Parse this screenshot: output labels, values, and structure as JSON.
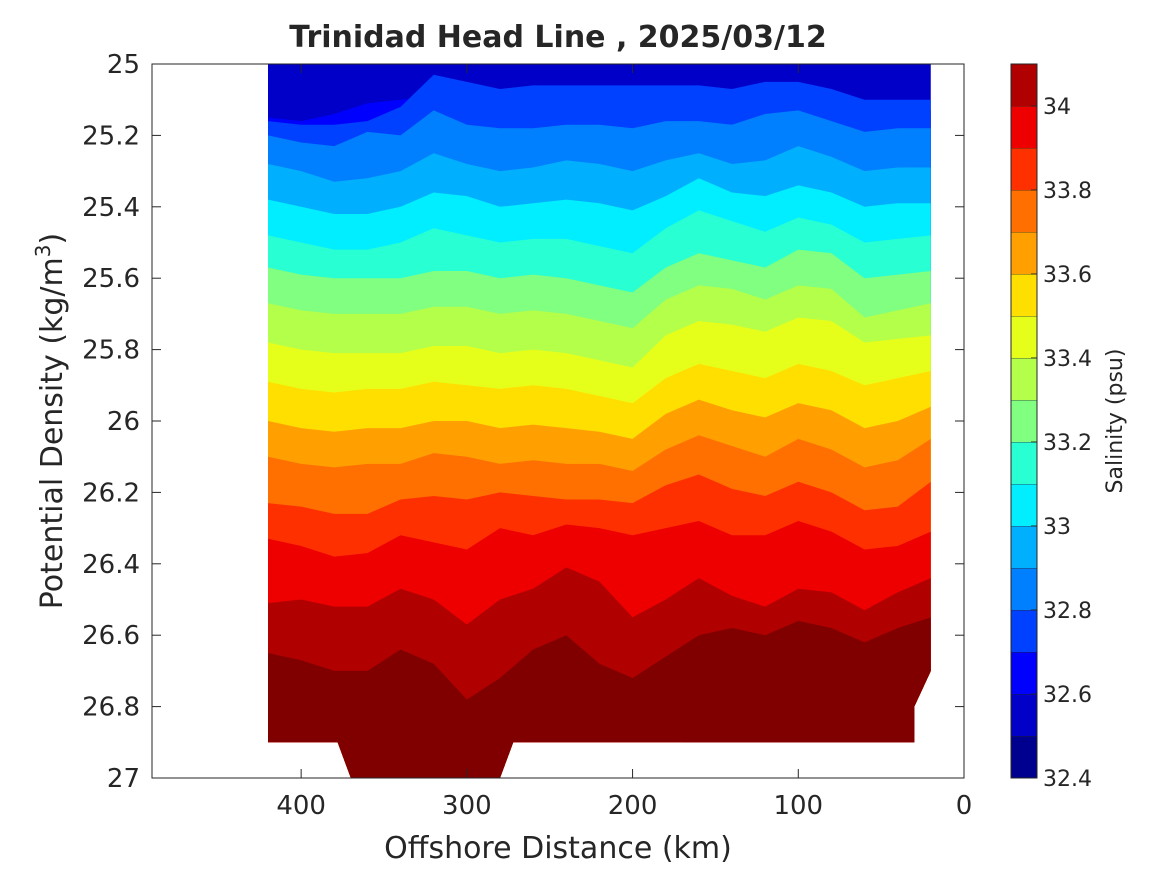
{
  "chart_data": {
    "type": "heatmap",
    "plot_style": "filled-contour",
    "title": "Trinidad Head Line , 2025/03/12",
    "xlabel": "Offshore Distance (km)",
    "ylabel_main": "Potential Density (kg/m",
    "ylabel_sup": "3",
    "ylabel_close": ")",
    "xlim": [
      490,
      0
    ],
    "x_reversed": true,
    "ylim": [
      25,
      27
    ],
    "y_reversed": true,
    "grid": false,
    "xticks": [
      400,
      300,
      200,
      100,
      0
    ],
    "xtick_labels": [
      "400",
      "300",
      "200",
      "100",
      "0"
    ],
    "yticks": [
      25,
      25.2,
      25.4,
      25.6,
      25.8,
      26,
      26.2,
      26.4,
      26.6,
      26.8,
      27
    ],
    "ytick_labels": [
      "25",
      "25.2",
      "25.4",
      "25.6",
      "25.8",
      "26",
      "26.2",
      "26.4",
      "26.6",
      "26.8",
      "27"
    ],
    "colorbar": {
      "label": "Salinity (psu)",
      "range": [
        32.4,
        34.1
      ],
      "tick_values": [
        32.4,
        32.6,
        32.8,
        33,
        33.2,
        33.4,
        33.6,
        33.8,
        34
      ],
      "tick_labels": [
        "32.4",
        "32.6",
        "32.8",
        "33",
        "33.2",
        "33.4",
        "33.6",
        "33.8",
        "34"
      ],
      "levels": [
        {
          "lo": 32.4,
          "hi": 32.5,
          "color": "#00008f"
        },
        {
          "lo": 32.5,
          "hi": 32.6,
          "color": "#0000c8"
        },
        {
          "lo": 32.6,
          "hi": 32.7,
          "color": "#0000ff"
        },
        {
          "lo": 32.7,
          "hi": 32.8,
          "color": "#0040ff"
        },
        {
          "lo": 32.8,
          "hi": 32.9,
          "color": "#0080ff"
        },
        {
          "lo": 32.9,
          "hi": 33.0,
          "color": "#00b0ff"
        },
        {
          "lo": 33.0,
          "hi": 33.1,
          "color": "#00eeff"
        },
        {
          "lo": 33.1,
          "hi": 33.2,
          "color": "#28ffd2"
        },
        {
          "lo": 33.2,
          "hi": 33.3,
          "color": "#80ff80"
        },
        {
          "lo": 33.3,
          "hi": 33.4,
          "color": "#b4ff4a"
        },
        {
          "lo": 33.4,
          "hi": 33.5,
          "color": "#e6ff1a"
        },
        {
          "lo": 33.5,
          "hi": 33.6,
          "color": "#ffdf00"
        },
        {
          "lo": 33.6,
          "hi": 33.7,
          "color": "#ffa000"
        },
        {
          "lo": 33.7,
          "hi": 33.8,
          "color": "#ff7000"
        },
        {
          "lo": 33.8,
          "hi": 33.9,
          "color": "#ff3000"
        },
        {
          "lo": 33.9,
          "hi": 34.0,
          "color": "#ee0000"
        },
        {
          "lo": 34.0,
          "hi": 34.1,
          "color": "#b00000"
        },
        {
          "lo": 34.1,
          "hi": 34.2,
          "color": "#800000"
        }
      ]
    },
    "data_extent": {
      "x_min": 20,
      "x_max": 420,
      "y_bottom": 26.9,
      "x_right_taper": 30,
      "y_taper_top": 26.7,
      "y_taper_bottom": 26.8,
      "notch_x": [
        370,
        280
      ],
      "notch_bottom": 27.0
    },
    "x": [
      420,
      400,
      380,
      360,
      340,
      320,
      300,
      280,
      260,
      240,
      220,
      200,
      180,
      160,
      140,
      120,
      100,
      80,
      60,
      40,
      20
    ],
    "contours": [
      {
        "level": 32.6,
        "y": [
          25.15,
          25.16,
          25.14,
          25.11,
          25.1,
          25.09,
          25.13,
          25.13,
          25.13,
          25.14,
          25.16,
          25.14,
          25.12,
          25.14,
          25.15,
          25.14,
          25.12,
          25.11,
          25.13,
          25.13,
          25.13
        ]
      },
      {
        "level": 32.7,
        "y": [
          25.16,
          25.17,
          25.17,
          25.16,
          25.12,
          25.03,
          25.05,
          25.07,
          25.06,
          25.06,
          25.06,
          25.06,
          25.06,
          25.06,
          25.07,
          25.05,
          25.05,
          25.07,
          25.1,
          25.1,
          25.1
        ]
      },
      {
        "level": 32.8,
        "y": [
          25.2,
          25.22,
          25.23,
          25.19,
          25.2,
          25.13,
          25.17,
          25.18,
          25.18,
          25.17,
          25.17,
          25.18,
          25.16,
          25.16,
          25.17,
          25.14,
          25.13,
          25.16,
          25.19,
          25.18,
          25.18
        ]
      },
      {
        "level": 32.9,
        "y": [
          25.28,
          25.3,
          25.33,
          25.32,
          25.3,
          25.25,
          25.28,
          25.3,
          25.29,
          25.27,
          25.28,
          25.3,
          25.27,
          25.25,
          25.28,
          25.27,
          25.23,
          25.26,
          25.3,
          25.29,
          25.29
        ]
      },
      {
        "level": 33.0,
        "y": [
          25.38,
          25.4,
          25.42,
          25.42,
          25.4,
          25.36,
          25.37,
          25.4,
          25.39,
          25.38,
          25.39,
          25.41,
          25.37,
          25.32,
          25.36,
          25.37,
          25.34,
          25.36,
          25.4,
          25.39,
          25.39
        ]
      },
      {
        "level": 33.1,
        "y": [
          25.48,
          25.5,
          25.52,
          25.52,
          25.5,
          25.46,
          25.48,
          25.5,
          25.49,
          25.49,
          25.51,
          25.53,
          25.46,
          25.41,
          25.44,
          25.47,
          25.43,
          25.45,
          25.5,
          25.49,
          25.48
        ]
      },
      {
        "level": 33.2,
        "y": [
          25.57,
          25.59,
          25.6,
          25.6,
          25.6,
          25.58,
          25.58,
          25.6,
          25.59,
          25.6,
          25.62,
          25.64,
          25.57,
          25.53,
          25.55,
          25.57,
          25.52,
          25.53,
          25.6,
          25.59,
          25.58
        ]
      },
      {
        "level": 33.3,
        "y": [
          25.67,
          25.69,
          25.7,
          25.7,
          25.7,
          25.68,
          25.68,
          25.7,
          25.69,
          25.7,
          25.72,
          25.74,
          25.66,
          25.62,
          25.63,
          25.66,
          25.62,
          25.63,
          25.71,
          25.69,
          25.67
        ]
      },
      {
        "level": 33.4,
        "y": [
          25.78,
          25.8,
          25.81,
          25.81,
          25.81,
          25.79,
          25.79,
          25.81,
          25.8,
          25.81,
          25.83,
          25.85,
          25.76,
          25.72,
          25.73,
          25.75,
          25.71,
          25.72,
          25.78,
          25.77,
          25.76
        ]
      },
      {
        "level": 33.5,
        "y": [
          25.89,
          25.91,
          25.92,
          25.91,
          25.91,
          25.89,
          25.9,
          25.91,
          25.9,
          25.91,
          25.93,
          25.95,
          25.88,
          25.84,
          25.86,
          25.88,
          25.84,
          25.86,
          25.9,
          25.88,
          25.86
        ]
      },
      {
        "level": 33.6,
        "y": [
          26.0,
          26.02,
          26.03,
          26.02,
          26.02,
          26.0,
          26.0,
          26.02,
          26.01,
          26.02,
          26.03,
          26.05,
          25.98,
          25.94,
          25.97,
          25.99,
          25.95,
          25.97,
          26.02,
          26.0,
          25.96
        ]
      },
      {
        "level": 33.7,
        "y": [
          26.1,
          26.12,
          26.13,
          26.12,
          26.12,
          26.09,
          26.1,
          26.12,
          26.11,
          26.12,
          26.12,
          26.14,
          26.08,
          26.04,
          26.07,
          26.1,
          26.05,
          26.08,
          26.13,
          26.11,
          26.05
        ]
      },
      {
        "level": 33.8,
        "y": [
          26.23,
          26.24,
          26.26,
          26.26,
          26.22,
          26.21,
          26.22,
          26.2,
          26.21,
          26.22,
          26.22,
          26.23,
          26.18,
          26.15,
          26.19,
          26.21,
          26.17,
          26.2,
          26.25,
          26.24,
          26.17
        ]
      },
      {
        "level": 33.9,
        "y": [
          26.33,
          26.35,
          26.38,
          26.37,
          26.32,
          26.34,
          26.36,
          26.3,
          26.32,
          26.29,
          26.3,
          26.32,
          26.3,
          26.28,
          26.32,
          26.32,
          26.28,
          26.31,
          26.36,
          26.35,
          26.31
        ]
      },
      {
        "level": 34.0,
        "y": [
          26.51,
          26.5,
          26.52,
          26.52,
          26.47,
          26.5,
          26.57,
          26.5,
          26.47,
          26.41,
          26.45,
          26.55,
          26.5,
          26.44,
          26.49,
          26.52,
          26.47,
          26.48,
          26.53,
          26.48,
          26.44
        ]
      },
      {
        "level": 34.1,
        "y": [
          26.65,
          26.67,
          26.7,
          26.7,
          26.64,
          26.68,
          26.78,
          26.72,
          26.64,
          26.6,
          26.68,
          26.72,
          26.66,
          26.6,
          26.58,
          26.6,
          26.56,
          26.58,
          26.62,
          26.58,
          26.55
        ]
      }
    ],
    "lower_contours": [
      {
        "level": 34.2,
        "segment_x": [
          170,
          150,
          130,
          110,
          90,
          70,
          50,
          30
        ],
        "segment_y": [
          26.9,
          26.86,
          26.82,
          26.82,
          26.82,
          26.83,
          26.86,
          26.8
        ]
      }
    ]
  }
}
